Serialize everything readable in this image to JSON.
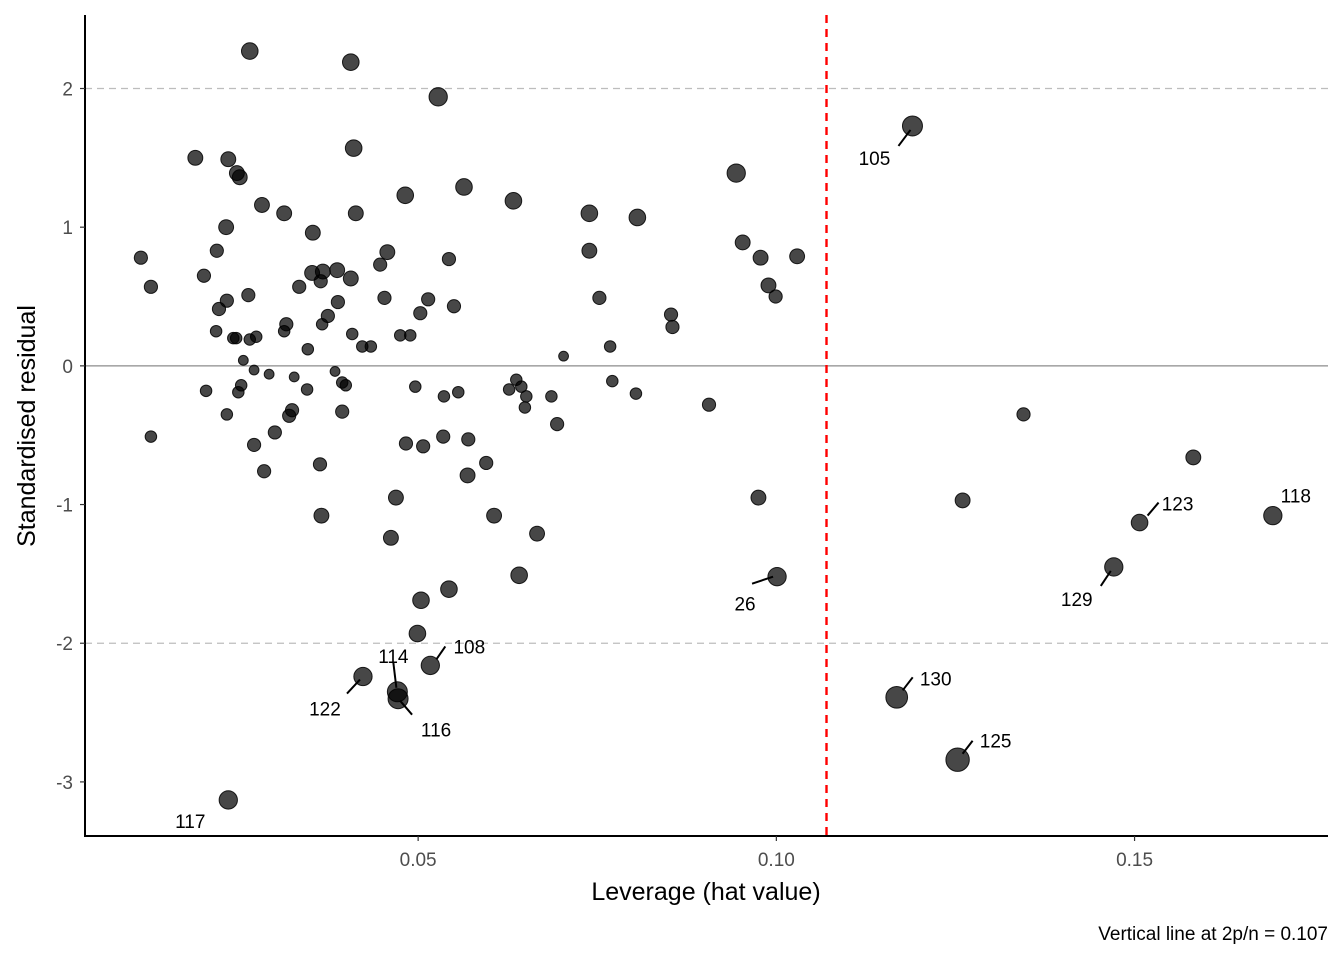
{
  "chart_data": {
    "type": "scatter",
    "title": "",
    "xlabel": "Leverage (hat value)",
    "ylabel": "Standardised residual",
    "caption": "Vertical line at 2p/n = 0.107",
    "xlim": [
      0.0035,
      0.177
    ],
    "ylim": [
      -3.39,
      2.53
    ],
    "xticks": [
      0.05,
      0.1,
      0.15
    ],
    "xtick_labels": [
      "0.05",
      "0.10",
      "0.15"
    ],
    "yticks": [
      -3,
      -2,
      -1,
      0,
      1,
      2
    ],
    "ytick_labels": [
      "-3",
      "-2",
      "-1",
      "0",
      "1",
      "2"
    ],
    "reference_lines": {
      "h_dashed": [
        -2,
        2
      ],
      "h_solid": [
        0
      ],
      "v_threshold": 0.107
    },
    "colors": {
      "point": "#000000",
      "threshold": "#ff0000",
      "grid": "#bdbdbd",
      "zero": "#8c8c8c"
    },
    "point_size_note": "relative marker size (1-10)",
    "points": [
      {
        "x": 0.0265,
        "y": 2.27,
        "s": 6
      },
      {
        "x": 0.0406,
        "y": 2.19,
        "s": 6
      },
      {
        "x": 0.0528,
        "y": 1.94,
        "s": 7
      },
      {
        "x": 0.119,
        "y": 1.73,
        "s": 8,
        "label": "105"
      },
      {
        "x": 0.0189,
        "y": 1.5,
        "s": 5
      },
      {
        "x": 0.0235,
        "y": 1.49,
        "s": 5
      },
      {
        "x": 0.041,
        "y": 1.57,
        "s": 6
      },
      {
        "x": 0.0247,
        "y": 1.39,
        "s": 5
      },
      {
        "x": 0.0251,
        "y": 1.36,
        "s": 5
      },
      {
        "x": 0.0944,
        "y": 1.39,
        "s": 7
      },
      {
        "x": 0.0564,
        "y": 1.29,
        "s": 6
      },
      {
        "x": 0.0482,
        "y": 1.23,
        "s": 6
      },
      {
        "x": 0.0633,
        "y": 1.19,
        "s": 6
      },
      {
        "x": 0.0282,
        "y": 1.16,
        "s": 5
      },
      {
        "x": 0.0313,
        "y": 1.1,
        "s": 5
      },
      {
        "x": 0.0413,
        "y": 1.1,
        "s": 5
      },
      {
        "x": 0.0739,
        "y": 1.1,
        "s": 6
      },
      {
        "x": 0.0806,
        "y": 1.07,
        "s": 6
      },
      {
        "x": 0.0232,
        "y": 1.0,
        "s": 5
      },
      {
        "x": 0.0353,
        "y": 0.96,
        "s": 5
      },
      {
        "x": 0.0953,
        "y": 0.89,
        "s": 5
      },
      {
        "x": 0.0219,
        "y": 0.83,
        "s": 4
      },
      {
        "x": 0.0457,
        "y": 0.82,
        "s": 5
      },
      {
        "x": 0.0739,
        "y": 0.83,
        "s": 5
      },
      {
        "x": 0.0113,
        "y": 0.78,
        "s": 4
      },
      {
        "x": 0.0978,
        "y": 0.78,
        "s": 5
      },
      {
        "x": 0.1029,
        "y": 0.79,
        "s": 5
      },
      {
        "x": 0.0543,
        "y": 0.77,
        "s": 4
      },
      {
        "x": 0.0447,
        "y": 0.73,
        "s": 4
      },
      {
        "x": 0.0352,
        "y": 0.67,
        "s": 5
      },
      {
        "x": 0.0367,
        "y": 0.68,
        "s": 5
      },
      {
        "x": 0.0387,
        "y": 0.69,
        "s": 5
      },
      {
        "x": 0.0201,
        "y": 0.65,
        "s": 4
      },
      {
        "x": 0.0406,
        "y": 0.63,
        "s": 5
      },
      {
        "x": 0.0364,
        "y": 0.61,
        "s": 4
      },
      {
        "x": 0.0127,
        "y": 0.57,
        "s": 4
      },
      {
        "x": 0.0334,
        "y": 0.57,
        "s": 4
      },
      {
        "x": 0.0989,
        "y": 0.58,
        "s": 5
      },
      {
        "x": 0.0263,
        "y": 0.51,
        "s": 4
      },
      {
        "x": 0.0999,
        "y": 0.5,
        "s": 4
      },
      {
        "x": 0.0453,
        "y": 0.49,
        "s": 4
      },
      {
        "x": 0.0514,
        "y": 0.48,
        "s": 4
      },
      {
        "x": 0.0753,
        "y": 0.49,
        "s": 4
      },
      {
        "x": 0.0233,
        "y": 0.47,
        "s": 4
      },
      {
        "x": 0.0388,
        "y": 0.46,
        "s": 4
      },
      {
        "x": 0.055,
        "y": 0.43,
        "s": 4
      },
      {
        "x": 0.0222,
        "y": 0.41,
        "s": 4
      },
      {
        "x": 0.0503,
        "y": 0.38,
        "s": 4
      },
      {
        "x": 0.0374,
        "y": 0.36,
        "s": 4
      },
      {
        "x": 0.0853,
        "y": 0.37,
        "s": 4
      },
      {
        "x": 0.0316,
        "y": 0.3,
        "s": 4
      },
      {
        "x": 0.0366,
        "y": 0.3,
        "s": 3
      },
      {
        "x": 0.0855,
        "y": 0.28,
        "s": 4
      },
      {
        "x": 0.0218,
        "y": 0.25,
        "s": 3
      },
      {
        "x": 0.0313,
        "y": 0.25,
        "s": 3
      },
      {
        "x": 0.0408,
        "y": 0.23,
        "s": 3
      },
      {
        "x": 0.0475,
        "y": 0.22,
        "s": 3
      },
      {
        "x": 0.0489,
        "y": 0.22,
        "s": 3
      },
      {
        "x": 0.0242,
        "y": 0.2,
        "s": 3
      },
      {
        "x": 0.0246,
        "y": 0.2,
        "s": 3
      },
      {
        "x": 0.0265,
        "y": 0.19,
        "s": 3
      },
      {
        "x": 0.0274,
        "y": 0.21,
        "s": 3
      },
      {
        "x": 0.0422,
        "y": 0.14,
        "s": 3
      },
      {
        "x": 0.0434,
        "y": 0.14,
        "s": 3
      },
      {
        "x": 0.0768,
        "y": 0.14,
        "s": 3
      },
      {
        "x": 0.0346,
        "y": 0.12,
        "s": 3
      },
      {
        "x": 0.0703,
        "y": 0.07,
        "s": 2
      },
      {
        "x": 0.0256,
        "y": 0.04,
        "s": 2
      },
      {
        "x": 0.0271,
        "y": -0.03,
        "s": 2
      },
      {
        "x": 0.0292,
        "y": -0.06,
        "s": 2
      },
      {
        "x": 0.0384,
        "y": -0.04,
        "s": 2
      },
      {
        "x": 0.0327,
        "y": -0.08,
        "s": 2
      },
      {
        "x": 0.0637,
        "y": -0.1,
        "s": 3
      },
      {
        "x": 0.0771,
        "y": -0.11,
        "s": 3
      },
      {
        "x": 0.0394,
        "y": -0.12,
        "s": 3
      },
      {
        "x": 0.0399,
        "y": -0.14,
        "s": 3
      },
      {
        "x": 0.0253,
        "y": -0.14,
        "s": 3
      },
      {
        "x": 0.0644,
        "y": -0.15,
        "s": 3
      },
      {
        "x": 0.0496,
        "y": -0.15,
        "s": 3
      },
      {
        "x": 0.0627,
        "y": -0.17,
        "s": 3
      },
      {
        "x": 0.0204,
        "y": -0.18,
        "s": 3
      },
      {
        "x": 0.0345,
        "y": -0.17,
        "s": 3
      },
      {
        "x": 0.0249,
        "y": -0.19,
        "s": 3
      },
      {
        "x": 0.0556,
        "y": -0.19,
        "s": 3
      },
      {
        "x": 0.0536,
        "y": -0.22,
        "s": 3
      },
      {
        "x": 0.0651,
        "y": -0.22,
        "s": 3
      },
      {
        "x": 0.0686,
        "y": -0.22,
        "s": 3
      },
      {
        "x": 0.0804,
        "y": -0.2,
        "s": 3
      },
      {
        "x": 0.0906,
        "y": -0.28,
        "s": 4
      },
      {
        "x": 0.0649,
        "y": -0.3,
        "s": 3
      },
      {
        "x": 0.1345,
        "y": -0.35,
        "s": 4
      },
      {
        "x": 0.0324,
        "y": -0.32,
        "s": 4
      },
      {
        "x": 0.0233,
        "y": -0.35,
        "s": 3
      },
      {
        "x": 0.032,
        "y": -0.36,
        "s": 4
      },
      {
        "x": 0.0394,
        "y": -0.33,
        "s": 4
      },
      {
        "x": 0.0694,
        "y": -0.42,
        "s": 4
      },
      {
        "x": 0.0127,
        "y": -0.51,
        "s": 3
      },
      {
        "x": 0.03,
        "y": -0.48,
        "s": 4
      },
      {
        "x": 0.0535,
        "y": -0.51,
        "s": 4
      },
      {
        "x": 0.057,
        "y": -0.53,
        "s": 4
      },
      {
        "x": 0.0483,
        "y": -0.56,
        "s": 4
      },
      {
        "x": 0.0271,
        "y": -0.57,
        "s": 4
      },
      {
        "x": 0.0507,
        "y": -0.58,
        "s": 4
      },
      {
        "x": 0.1582,
        "y": -0.66,
        "s": 5
      },
      {
        "x": 0.0363,
        "y": -0.71,
        "s": 4
      },
      {
        "x": 0.0595,
        "y": -0.7,
        "s": 4
      },
      {
        "x": 0.0285,
        "y": -0.76,
        "s": 4
      },
      {
        "x": 0.0569,
        "y": -0.79,
        "s": 5
      },
      {
        "x": 0.0469,
        "y": -0.95,
        "s": 5
      },
      {
        "x": 0.0975,
        "y": -0.95,
        "s": 5
      },
      {
        "x": 0.126,
        "y": -0.97,
        "s": 5
      },
      {
        "x": 0.0365,
        "y": -1.08,
        "s": 5
      },
      {
        "x": 0.0606,
        "y": -1.08,
        "s": 5
      },
      {
        "x": 0.1693,
        "y": -1.08,
        "s": 7,
        "label": "118"
      },
      {
        "x": 0.1507,
        "y": -1.13,
        "s": 6,
        "label": "123"
      },
      {
        "x": 0.0666,
        "y": -1.21,
        "s": 5
      },
      {
        "x": 0.0462,
        "y": -1.24,
        "s": 5
      },
      {
        "x": 0.1471,
        "y": -1.45,
        "s": 7,
        "label": "129"
      },
      {
        "x": 0.0641,
        "y": -1.51,
        "s": 6
      },
      {
        "x": 0.1001,
        "y": -1.52,
        "s": 7,
        "label": "26"
      },
      {
        "x": 0.0543,
        "y": -1.61,
        "s": 6
      },
      {
        "x": 0.0504,
        "y": -1.69,
        "s": 6
      },
      {
        "x": 0.0499,
        "y": -1.93,
        "s": 6
      },
      {
        "x": 0.0517,
        "y": -2.16,
        "s": 7,
        "label": "108"
      },
      {
        "x": 0.0423,
        "y": -2.24,
        "s": 7,
        "label": "122"
      },
      {
        "x": 0.0471,
        "y": -2.35,
        "s": 8,
        "label": "114"
      },
      {
        "x": 0.0472,
        "y": -2.4,
        "s": 8,
        "label": "116"
      },
      {
        "x": 0.1168,
        "y": -2.39,
        "s": 9,
        "label": "130"
      },
      {
        "x": 0.1253,
        "y": -2.84,
        "s": 10,
        "label": "125"
      },
      {
        "x": 0.0235,
        "y": -3.13,
        "s": 7,
        "label": "117"
      }
    ]
  }
}
